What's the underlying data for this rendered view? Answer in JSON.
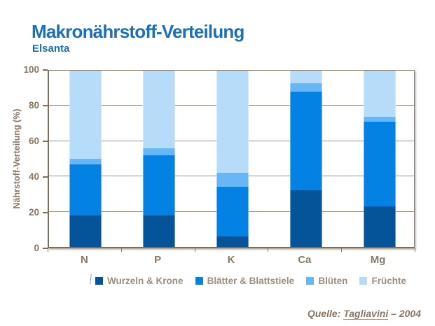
{
  "header": {
    "title": "Makronährstoff-Verteilung",
    "subtitle": "Elsanta"
  },
  "source": {
    "prefix": "Quelle: ",
    "author": "Tagliavini",
    "suffix": " – 2004"
  },
  "colors": {
    "title_blue": "#1c70b8",
    "axis_brown": "#7e6d59",
    "axis_label_brown": "#8a7763",
    "gridline": "#9d8f80",
    "legend_text": "#9d8e7e",
    "source_text": "#8a7663"
  },
  "chart_data": {
    "type": "bar",
    "stacked": true,
    "title": "Makronährstoff-Verteilung",
    "subtitle": "Elsanta",
    "xlabel": "",
    "ylabel": "Nährstoff-Verteilung (%)",
    "ylim": [
      0,
      100
    ],
    "yticks": [
      0,
      20,
      40,
      60,
      80,
      100
    ],
    "grid": true,
    "legend_position": "bottom",
    "categories": [
      "N",
      "P",
      "K",
      "Ca",
      "Mg"
    ],
    "series": [
      {
        "name": "Wurzeln & Krone",
        "color": "#05549a",
        "values": [
          18,
          18,
          6,
          32,
          23
        ]
      },
      {
        "name": "Blätter & Blattstiele",
        "color": "#0382e4",
        "values": [
          29,
          34,
          28,
          56,
          48
        ]
      },
      {
        "name": "Blüten",
        "color": "#67b7f7",
        "values": [
          3,
          4,
          8,
          5,
          3
        ]
      },
      {
        "name": "Früchte",
        "color": "#b7dcfa",
        "values": [
          50,
          44,
          58,
          7,
          26
        ]
      }
    ]
  }
}
